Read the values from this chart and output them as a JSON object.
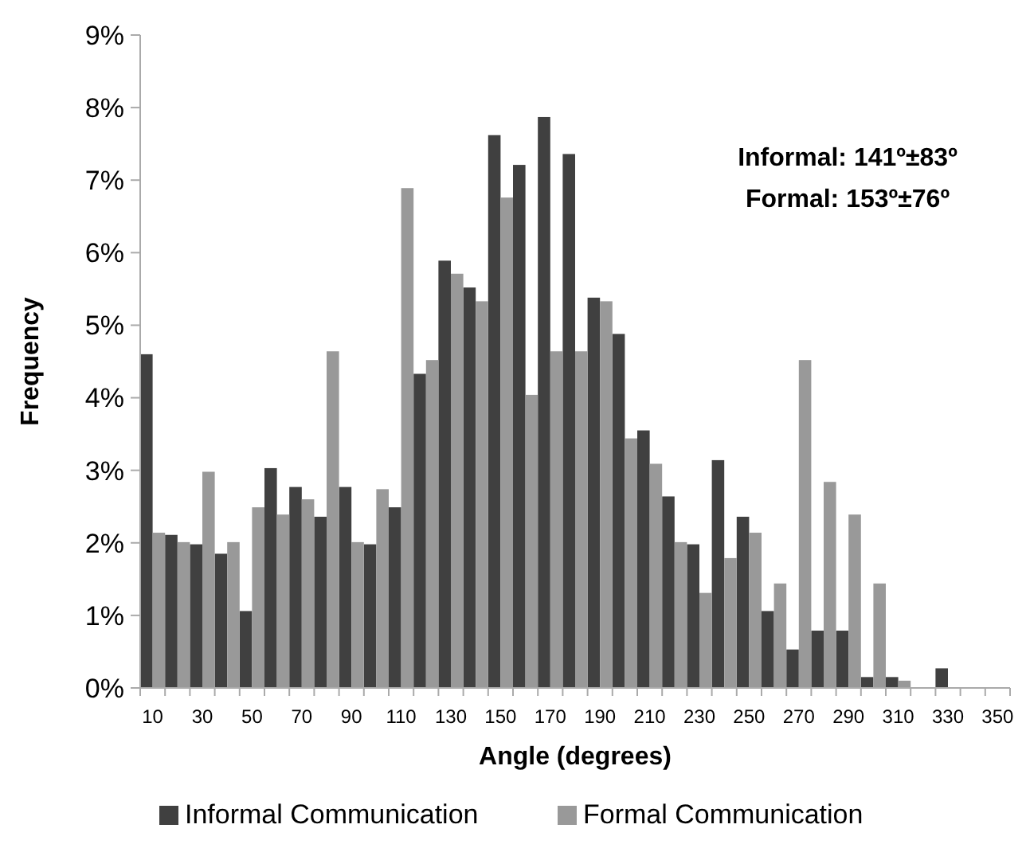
{
  "chart_data": {
    "type": "bar",
    "xlabel": "Angle (degrees)",
    "ylabel": "Frequency",
    "categories": [
      "10",
      null,
      "30",
      null,
      "50",
      null,
      "70",
      null,
      "90",
      null,
      "110",
      null,
      "130",
      null,
      "150",
      null,
      "170",
      null,
      "190",
      null,
      "210",
      null,
      "230",
      null,
      "250",
      null,
      "270",
      null,
      "290",
      null,
      "310",
      null,
      "330",
      null,
      "350"
    ],
    "series": [
      {
        "name": "Informal Communication",
        "color": "#404040",
        "values": [
          4.6,
          2.11,
          1.98,
          1.85,
          1.06,
          3.03,
          2.77,
          2.36,
          2.77,
          1.98,
          2.49,
          4.33,
          5.89,
          5.52,
          7.62,
          7.21,
          7.87,
          7.36,
          5.38,
          4.88,
          3.55,
          2.64,
          1.98,
          3.14,
          2.36,
          1.06,
          0.53,
          0.79,
          0.79,
          0.15,
          0.15,
          0,
          0.27,
          0,
          0
        ]
      },
      {
        "name": "Formal Communication",
        "color": "#999999",
        "values": [
          2.14,
          2.01,
          2.98,
          2.01,
          2.49,
          2.39,
          2.6,
          4.64,
          2.01,
          2.74,
          6.89,
          4.52,
          5.71,
          5.33,
          6.76,
          4.04,
          4.64,
          4.64,
          5.33,
          3.44,
          3.09,
          2.01,
          1.31,
          1.79,
          2.14,
          1.44,
          4.52,
          2.84,
          2.39,
          1.44,
          0.1,
          0,
          0,
          0,
          0
        ]
      }
    ],
    "ylim": [
      0,
      9
    ],
    "yticks": [
      {
        "value": 0,
        "label": "0%"
      },
      {
        "value": 1,
        "label": "1%"
      },
      {
        "value": 2,
        "label": "2%"
      },
      {
        "value": 3,
        "label": "3%"
      },
      {
        "value": 4,
        "label": "4%"
      },
      {
        "value": 5,
        "label": "5%"
      },
      {
        "value": 6,
        "label": "6%"
      },
      {
        "value": 7,
        "label": "7%"
      },
      {
        "value": 8,
        "label": "8%"
      },
      {
        "value": 9,
        "label": "9%"
      }
    ],
    "annotations": [
      "Informal: 141º±83º",
      "Formal: 153º±76º"
    ],
    "grid": false,
    "legend": "bottom"
  }
}
